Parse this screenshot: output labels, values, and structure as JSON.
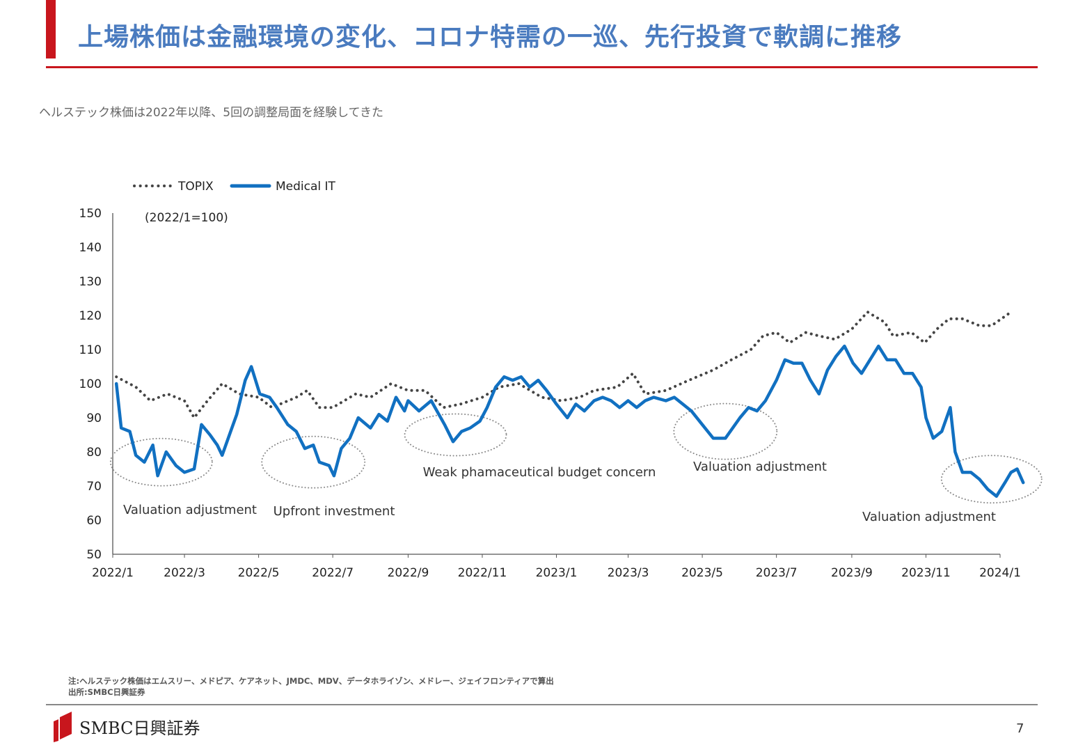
{
  "slide": {
    "title": "上場株価は金融環境の変化、コロナ特需の一巡、先行投資で軟調に推移",
    "subtitle": "ヘルステック株価は2022年以降、5回の調整局面を経験してきた",
    "note1": "注:ヘルステック株価はエムスリー、メドピア、ケアネット、JMDC、MDV、データホライゾン、メドレー、ジェイフロンティアで算出",
    "note2": "出所:SMBC日興証券",
    "logo_text": "SMBC日興証券",
    "page_number": "7"
  },
  "colors": {
    "accent_red": "#c8161d",
    "title_blue": "#4a7bbf",
    "medical_it": "#1170c1",
    "topix": "#444444",
    "ellipse": "#8a8a8a"
  },
  "chart_data": {
    "type": "line",
    "unit_note": "(2022/1=100)",
    "ylim": [
      50,
      150
    ],
    "yticks": [
      "150",
      "140",
      "130",
      "120",
      "110",
      "100",
      "90",
      "80",
      "70",
      "60",
      "50"
    ],
    "xticks": [
      "2022/1",
      "2022/3",
      "2022/5",
      "2022/7",
      "2022/9",
      "2022/11",
      "2023/1",
      "2023/3",
      "2023/5",
      "2023/7",
      "2023/9",
      "2023/11",
      "2024/1"
    ],
    "xlim": [
      "2022-01",
      "2024-01"
    ],
    "legend_position": "top-left",
    "series": [
      {
        "name": "TOPIX",
        "style": "dotted",
        "points": [
          [
            "2022-01-04",
            102
          ],
          [
            "2022-01-20",
            99
          ],
          [
            "2022-02-01",
            95
          ],
          [
            "2022-02-15",
            97
          ],
          [
            "2022-03-01",
            95
          ],
          [
            "2022-03-09",
            90
          ],
          [
            "2022-03-20",
            95
          ],
          [
            "2022-04-01",
            100
          ],
          [
            "2022-04-15",
            97
          ],
          [
            "2022-05-01",
            96
          ],
          [
            "2022-05-12",
            93
          ],
          [
            "2022-06-01",
            96
          ],
          [
            "2022-06-10",
            98
          ],
          [
            "2022-06-20",
            93
          ],
          [
            "2022-07-01",
            93
          ],
          [
            "2022-07-20",
            97
          ],
          [
            "2022-08-01",
            96
          ],
          [
            "2022-08-18",
            100
          ],
          [
            "2022-09-01",
            98
          ],
          [
            "2022-09-15",
            98
          ],
          [
            "2022-09-30",
            93
          ],
          [
            "2022-10-14",
            94
          ],
          [
            "2022-11-01",
            96
          ],
          [
            "2022-11-15",
            99
          ],
          [
            "2022-12-01",
            100
          ],
          [
            "2022-12-20",
            96
          ],
          [
            "2023-01-05",
            95
          ],
          [
            "2023-01-20",
            96
          ],
          [
            "2023-02-01",
            98
          ],
          [
            "2023-02-20",
            99
          ],
          [
            "2023-03-05",
            103
          ],
          [
            "2023-03-15",
            97
          ],
          [
            "2023-04-01",
            98
          ],
          [
            "2023-04-20",
            101
          ],
          [
            "2023-05-10",
            104
          ],
          [
            "2023-05-25",
            107
          ],
          [
            "2023-06-10",
            110
          ],
          [
            "2023-06-20",
            114
          ],
          [
            "2023-07-01",
            115
          ],
          [
            "2023-07-12",
            112
          ],
          [
            "2023-07-25",
            115
          ],
          [
            "2023-08-05",
            114
          ],
          [
            "2023-08-18",
            113
          ],
          [
            "2023-09-01",
            116
          ],
          [
            "2023-09-14",
            121
          ],
          [
            "2023-09-28",
            118
          ],
          [
            "2023-10-05",
            114
          ],
          [
            "2023-10-20",
            115
          ],
          [
            "2023-10-31",
            112
          ],
          [
            "2023-11-10",
            116
          ],
          [
            "2023-11-20",
            119
          ],
          [
            "2023-12-01",
            119
          ],
          [
            "2023-12-15",
            117
          ],
          [
            "2023-12-25",
            117
          ],
          [
            "2024-01-10",
            121
          ]
        ]
      },
      {
        "name": "Medical IT",
        "style": "solid",
        "points": [
          [
            "2022-01-04",
            100
          ],
          [
            "2022-01-08",
            87
          ],
          [
            "2022-01-15",
            86
          ],
          [
            "2022-01-20",
            79
          ],
          [
            "2022-01-27",
            77
          ],
          [
            "2022-02-03",
            82
          ],
          [
            "2022-02-07",
            73
          ],
          [
            "2022-02-14",
            80
          ],
          [
            "2022-02-22",
            76
          ],
          [
            "2022-03-01",
            74
          ],
          [
            "2022-03-09",
            75
          ],
          [
            "2022-03-15",
            88
          ],
          [
            "2022-03-22",
            85
          ],
          [
            "2022-03-28",
            82
          ],
          [
            "2022-04-01",
            79
          ],
          [
            "2022-04-08",
            86
          ],
          [
            "2022-04-13",
            91
          ],
          [
            "2022-04-20",
            101
          ],
          [
            "2022-04-25",
            105
          ],
          [
            "2022-05-02",
            97
          ],
          [
            "2022-05-10",
            96
          ],
          [
            "2022-05-16",
            93
          ],
          [
            "2022-05-25",
            88
          ],
          [
            "2022-06-01",
            86
          ],
          [
            "2022-06-08",
            81
          ],
          [
            "2022-06-15",
            82
          ],
          [
            "2022-06-20",
            77
          ],
          [
            "2022-06-28",
            76
          ],
          [
            "2022-07-02",
            73
          ],
          [
            "2022-07-08",
            81
          ],
          [
            "2022-07-15",
            84
          ],
          [
            "2022-07-22",
            90
          ],
          [
            "2022-08-01",
            87
          ],
          [
            "2022-08-08",
            91
          ],
          [
            "2022-08-15",
            89
          ],
          [
            "2022-08-22",
            96
          ],
          [
            "2022-08-29",
            92
          ],
          [
            "2022-09-01",
            95
          ],
          [
            "2022-09-10",
            92
          ],
          [
            "2022-09-20",
            95
          ],
          [
            "2022-10-01",
            88
          ],
          [
            "2022-10-08",
            83
          ],
          [
            "2022-10-15",
            86
          ],
          [
            "2022-10-22",
            87
          ],
          [
            "2022-10-30",
            89
          ],
          [
            "2022-11-05",
            93
          ],
          [
            "2022-11-12",
            99
          ],
          [
            "2022-11-19",
            102
          ],
          [
            "2022-11-26",
            101
          ],
          [
            "2022-12-03",
            102
          ],
          [
            "2022-12-10",
            99
          ],
          [
            "2022-12-17",
            101
          ],
          [
            "2022-12-24",
            98
          ],
          [
            "2023-01-01",
            94
          ],
          [
            "2023-01-10",
            90
          ],
          [
            "2023-01-17",
            94
          ],
          [
            "2023-01-24",
            92
          ],
          [
            "2023-02-01",
            95
          ],
          [
            "2023-02-08",
            96
          ],
          [
            "2023-02-15",
            95
          ],
          [
            "2023-02-22",
            93
          ],
          [
            "2023-03-01",
            95
          ],
          [
            "2023-03-08",
            93
          ],
          [
            "2023-03-15",
            95
          ],
          [
            "2023-03-22",
            96
          ],
          [
            "2023-04-01",
            95
          ],
          [
            "2023-04-08",
            96
          ],
          [
            "2023-04-15",
            94
          ],
          [
            "2023-04-22",
            92
          ],
          [
            "2023-05-01",
            88
          ],
          [
            "2023-05-10",
            84
          ],
          [
            "2023-05-20",
            84
          ],
          [
            "2023-06-01",
            90
          ],
          [
            "2023-06-08",
            93
          ],
          [
            "2023-06-15",
            92
          ],
          [
            "2023-06-22",
            95
          ],
          [
            "2023-07-01",
            101
          ],
          [
            "2023-07-08",
            107
          ],
          [
            "2023-07-15",
            106
          ],
          [
            "2023-07-22",
            106
          ],
          [
            "2023-07-29",
            101
          ],
          [
            "2023-08-05",
            97
          ],
          [
            "2023-08-12",
            104
          ],
          [
            "2023-08-19",
            108
          ],
          [
            "2023-08-26",
            111
          ],
          [
            "2023-09-02",
            106
          ],
          [
            "2023-09-09",
            103
          ],
          [
            "2023-09-16",
            107
          ],
          [
            "2023-09-23",
            111
          ],
          [
            "2023-09-30",
            107
          ],
          [
            "2023-10-07",
            107
          ],
          [
            "2023-10-14",
            103
          ],
          [
            "2023-10-21",
            103
          ],
          [
            "2023-10-28",
            99
          ],
          [
            "2023-11-01",
            90
          ],
          [
            "2023-11-07",
            84
          ],
          [
            "2023-11-14",
            86
          ],
          [
            "2023-11-21",
            93
          ],
          [
            "2023-11-25",
            80
          ],
          [
            "2023-12-01",
            74
          ],
          [
            "2023-12-08",
            74
          ],
          [
            "2023-12-15",
            72
          ],
          [
            "2023-12-22",
            69
          ],
          [
            "2023-12-29",
            67
          ],
          [
            "2024-01-05",
            71
          ],
          [
            "2024-01-10",
            74
          ],
          [
            "2024-01-15",
            75
          ],
          [
            "2024-01-20",
            71
          ]
        ]
      }
    ],
    "annotations": [
      {
        "text": "Valuation adjustment",
        "center": [
          "2022-02-10",
          77
        ]
      },
      {
        "text": "Upfront investment",
        "center": [
          "2022-06-15",
          77
        ]
      },
      {
        "text": "Weak phamaceutical budget concern",
        "center": [
          "2022-10-10",
          85
        ]
      },
      {
        "text": "Valuation adjustment",
        "center": [
          "2023-05-20",
          86
        ]
      },
      {
        "text": "Valuation adjustment",
        "center": [
          "2023-12-25",
          72
        ]
      }
    ]
  }
}
